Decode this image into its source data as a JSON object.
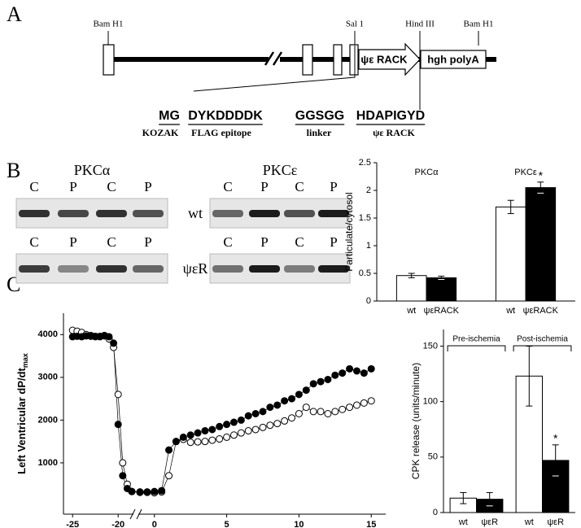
{
  "panels": [
    "A",
    "B",
    "C"
  ],
  "construct": {
    "sites": [
      "Bam H1",
      "Sal 1",
      "Hind III",
      "Bam H1"
    ],
    "insert": "ψε RACK",
    "tail": "hgh  polyA",
    "sequence": [
      {
        "seq": "MG",
        "label": "KOZAK"
      },
      {
        "seq": "DYKDDDDK",
        "label": "FLAG  epitope"
      },
      {
        "seq": "GGSGG",
        "label": "linker"
      },
      {
        "seq": "HDAPIGYD",
        "label": "ψε RACK"
      }
    ]
  },
  "blots": {
    "titles": [
      "PKCα",
      "PKCε"
    ],
    "lanes": [
      "C",
      "P",
      "C",
      "P"
    ],
    "rows": [
      "wt",
      "ψεR"
    ]
  },
  "chart_data": [
    {
      "type": "bar",
      "ylabel": "Particulate/cytosol",
      "categories": [
        "wt",
        "ψεRACK",
        "wt",
        "ψεRACK"
      ],
      "groups": [
        "PKCα",
        "PKCε"
      ],
      "group_brackets": false,
      "values": [
        0.46,
        0.42,
        1.7,
        2.05
      ],
      "errors": [
        0.04,
        0.03,
        0.12,
        0.1
      ],
      "colors": [
        "#ffffff",
        "#000000",
        "#ffffff",
        "#000000"
      ],
      "significance": [
        false,
        false,
        false,
        true
      ],
      "significance_mark": "*",
      "ylim": [
        0,
        2.5
      ],
      "yticks": [
        0,
        0.5,
        1,
        1.5,
        2,
        2.5
      ]
    },
    {
      "type": "scatter",
      "ylabel": "Left Ventricular dP/dt",
      "ylabel_sub": "max",
      "xlim": [
        -26,
        16
      ],
      "xbreak": [
        -18.5,
        -1
      ],
      "xticks": [
        -25,
        -20,
        0,
        5,
        10,
        15
      ],
      "ylim": [
        -200,
        4500
      ],
      "yticks": [
        1000,
        2000,
        3000,
        4000
      ],
      "connect": true,
      "x": [
        -25,
        -24.5,
        -24,
        -23.5,
        -23,
        -22.5,
        -22,
        -21.5,
        -21,
        -20.5,
        -20,
        -19.5,
        -19,
        -18.5,
        -1,
        -0.5,
        0,
        0.5,
        1,
        1.5,
        2,
        2.5,
        3,
        3.5,
        4,
        4.5,
        5,
        5.5,
        6,
        6.5,
        7,
        7.5,
        8,
        8.5,
        9,
        9.5,
        10,
        10.5,
        11,
        11.5,
        12,
        12.5,
        13,
        13.5,
        14,
        14.5,
        15
      ],
      "series": [
        {
          "marker": "open",
          "color": "#000000",
          "values": [
            4100,
            4080,
            4050,
            4000,
            3980,
            3960,
            3950,
            3970,
            3900,
            3700,
            2600,
            1000,
            500,
            330,
            310,
            310,
            300,
            320,
            700,
            1500,
            1550,
            1480,
            1490,
            1500,
            1530,
            1560,
            1600,
            1650,
            1700,
            1750,
            1780,
            1830,
            1880,
            1920,
            1980,
            2050,
            2150,
            2300,
            2200,
            2200,
            2150,
            2200,
            2250,
            2300,
            2350,
            2400,
            2450
          ]
        },
        {
          "marker": "filled",
          "color": "#000000",
          "values": [
            3950,
            3960,
            3950,
            3970,
            3960,
            3950,
            3960,
            3980,
            3950,
            3800,
            1900,
            700,
            400,
            330,
            320,
            320,
            330,
            350,
            1300,
            1500,
            1600,
            1650,
            1700,
            1750,
            1780,
            1850,
            1900,
            1950,
            2000,
            2100,
            2150,
            2200,
            2300,
            2350,
            2450,
            2500,
            2600,
            2700,
            2850,
            2900,
            2950,
            3050,
            3100,
            3200,
            3150,
            3100,
            3200
          ]
        }
      ]
    },
    {
      "type": "bar",
      "ylabel": "CPK release (units/minute)",
      "categories": [
        "wt",
        "ψεR",
        "wt",
        "ψεR"
      ],
      "groups": [
        "Pre-ischemia",
        "Post-ischemia"
      ],
      "group_brackets": true,
      "values": [
        13,
        12,
        123,
        47
      ],
      "errors": [
        5,
        6,
        27,
        14
      ],
      "colors": [
        "#ffffff",
        "#000000",
        "#ffffff",
        "#000000"
      ],
      "significance": [
        false,
        false,
        false,
        true
      ],
      "significance_mark": "*",
      "ylim": [
        0,
        165
      ],
      "yticks": [
        0,
        50,
        100,
        150
      ]
    }
  ]
}
